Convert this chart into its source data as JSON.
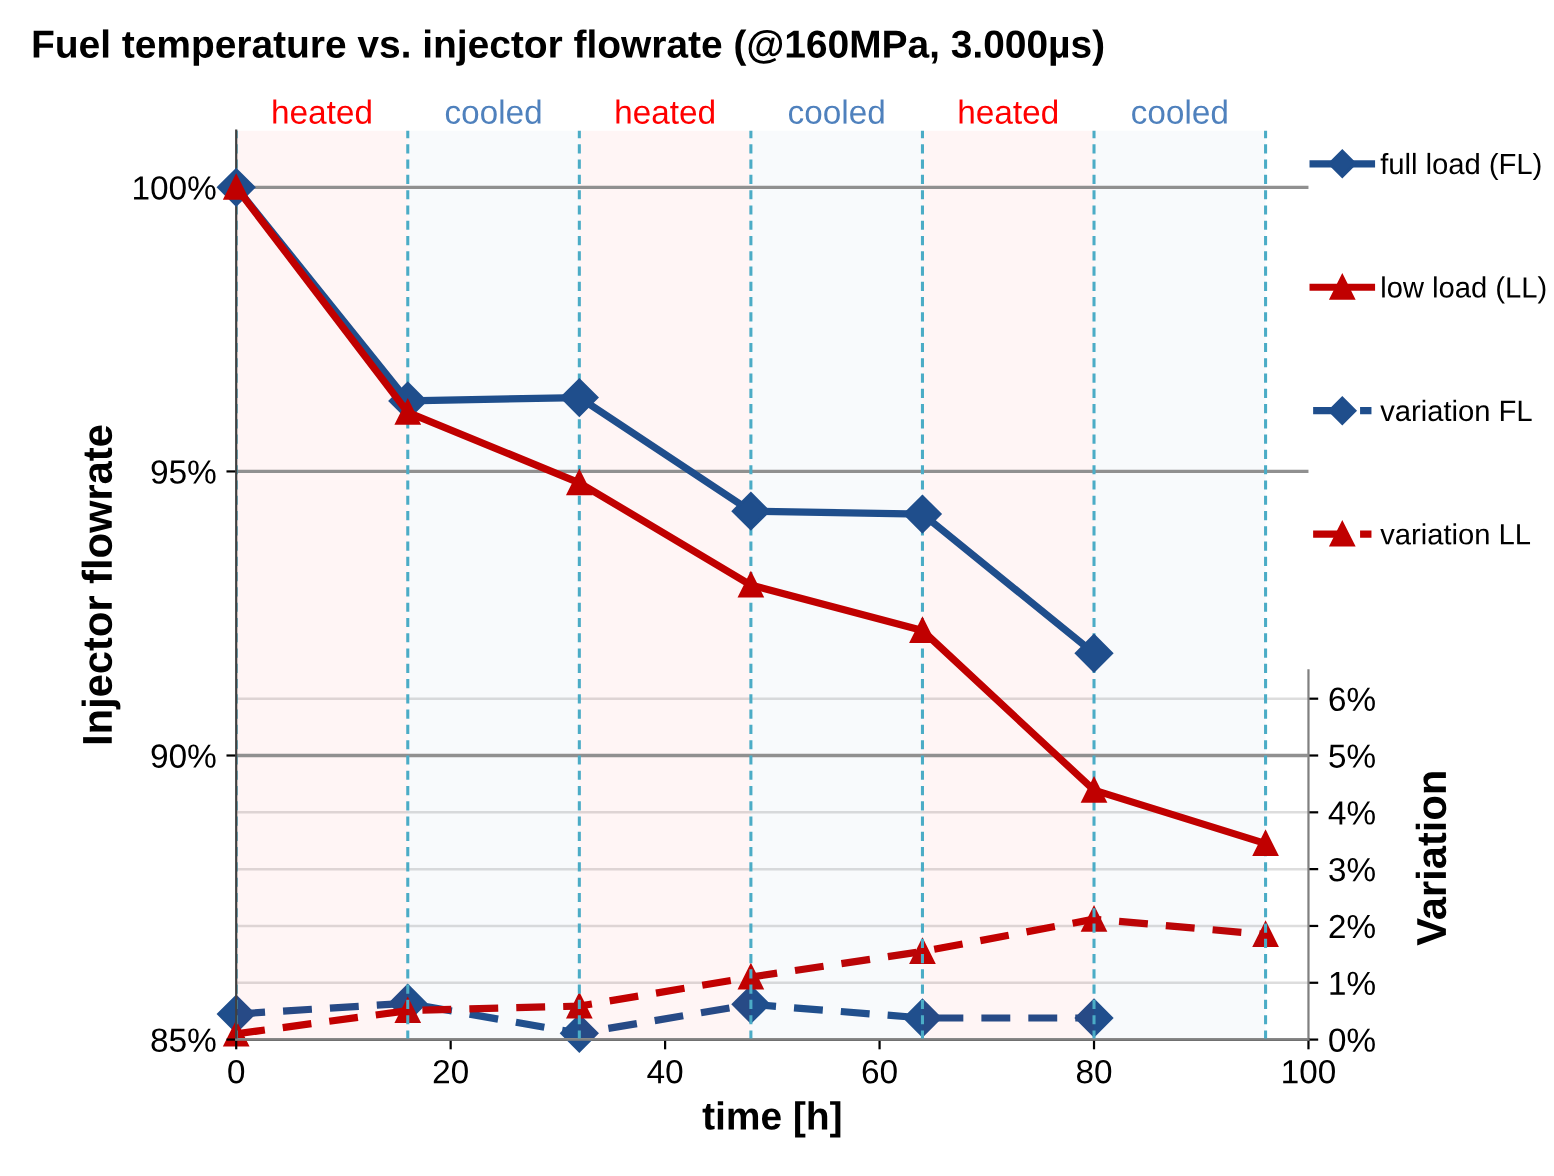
{
  "chart_data": {
    "type": "line",
    "title": "Fuel temperature vs. injector flowrate (@160MPa, 3.000µs)",
    "xlabel": "time [h]",
    "ylabel": "Injector flowrate",
    "y2label": "Variation",
    "xlim": [
      0,
      100
    ],
    "xticks": [
      0,
      20,
      40,
      60,
      80,
      100
    ],
    "ylim": [
      85,
      101
    ],
    "yticks": [
      {
        "value": 85,
        "label": "85%"
      },
      {
        "value": 90,
        "label": "90%"
      },
      {
        "value": 95,
        "label": "95%"
      },
      {
        "value": 100,
        "label": "100%"
      }
    ],
    "y2lim": [
      0,
      16
    ],
    "y2ticks": [
      {
        "value": 0,
        "label": "0%"
      },
      {
        "value": 1,
        "label": "1%"
      },
      {
        "value": 2,
        "label": "2%"
      },
      {
        "value": 3,
        "label": "3%"
      },
      {
        "value": 4,
        "label": "4%"
      },
      {
        "value": 5,
        "label": "5%"
      },
      {
        "value": 6,
        "label": "6%"
      }
    ],
    "grid": "y",
    "legend": "right",
    "series": [
      {
        "name": "full load (FL)",
        "color": "#1f4e8c",
        "marker": "diamond",
        "line_style": "solid",
        "x": [
          0,
          16,
          32,
          48,
          64,
          80
        ],
        "values": [
          100,
          96.24,
          96.3,
          94.3,
          94.25,
          91.8
        ]
      },
      {
        "name": "low load (LL)",
        "color": "#c00000",
        "marker": "triangle",
        "line_style": "solid",
        "x": [
          0,
          16,
          32,
          48,
          64,
          80,
          96
        ],
        "values": [
          100,
          96.04,
          94.8,
          93.0,
          92.2,
          89.39,
          88.45
        ]
      },
      {
        "name": "variation FL",
        "color": "#1f4e8c",
        "marker": "diamond",
        "line_style": "dashed",
        "axis": "y2",
        "x": [
          0,
          16,
          32,
          48,
          64,
          80
        ],
        "values": [
          0.45,
          0.64,
          0.11,
          0.62,
          0.38,
          0.38
        ]
      },
      {
        "name": "variation LL",
        "color": "#c00000",
        "marker": "triangle",
        "line_style": "dashed",
        "axis": "y2",
        "x": [
          0,
          16,
          32,
          48,
          64,
          80,
          96
        ],
        "values": [
          0.1,
          0.51,
          0.59,
          1.1,
          1.55,
          2.12,
          1.85
        ]
      }
    ],
    "ref_lines": [
      {
        "axis": "x",
        "value": 0,
        "color": "#4bacc6",
        "line_style": "dashed"
      },
      {
        "axis": "x",
        "value": 16,
        "color": "#4bacc6",
        "line_style": "dashed"
      },
      {
        "axis": "x",
        "value": 32,
        "color": "#4bacc6",
        "line_style": "dashed"
      },
      {
        "axis": "x",
        "value": 48,
        "color": "#4bacc6",
        "line_style": "dashed"
      },
      {
        "axis": "x",
        "value": 64,
        "color": "#4bacc6",
        "line_style": "dashed"
      },
      {
        "axis": "x",
        "value": 80,
        "color": "#4bacc6",
        "line_style": "dashed"
      },
      {
        "axis": "x",
        "value": 96,
        "color": "#4bacc6",
        "line_style": "dashed"
      }
    ],
    "bands": [
      {
        "axis": "x",
        "from": 0,
        "to": 16,
        "label": "heated",
        "color": "#ff0000"
      },
      {
        "axis": "x",
        "from": 16,
        "to": 32,
        "label": "cooled",
        "color": "#4f81bd"
      },
      {
        "axis": "x",
        "from": 32,
        "to": 48,
        "label": "heated",
        "color": "#ff0000"
      },
      {
        "axis": "x",
        "from": 48,
        "to": 64,
        "label": "cooled",
        "color": "#4f81bd"
      },
      {
        "axis": "x",
        "from": 64,
        "to": 80,
        "label": "heated",
        "color": "#ff0000"
      },
      {
        "axis": "x",
        "from": 80,
        "to": 96,
        "label": "cooled",
        "color": "#4f81bd"
      }
    ]
  }
}
